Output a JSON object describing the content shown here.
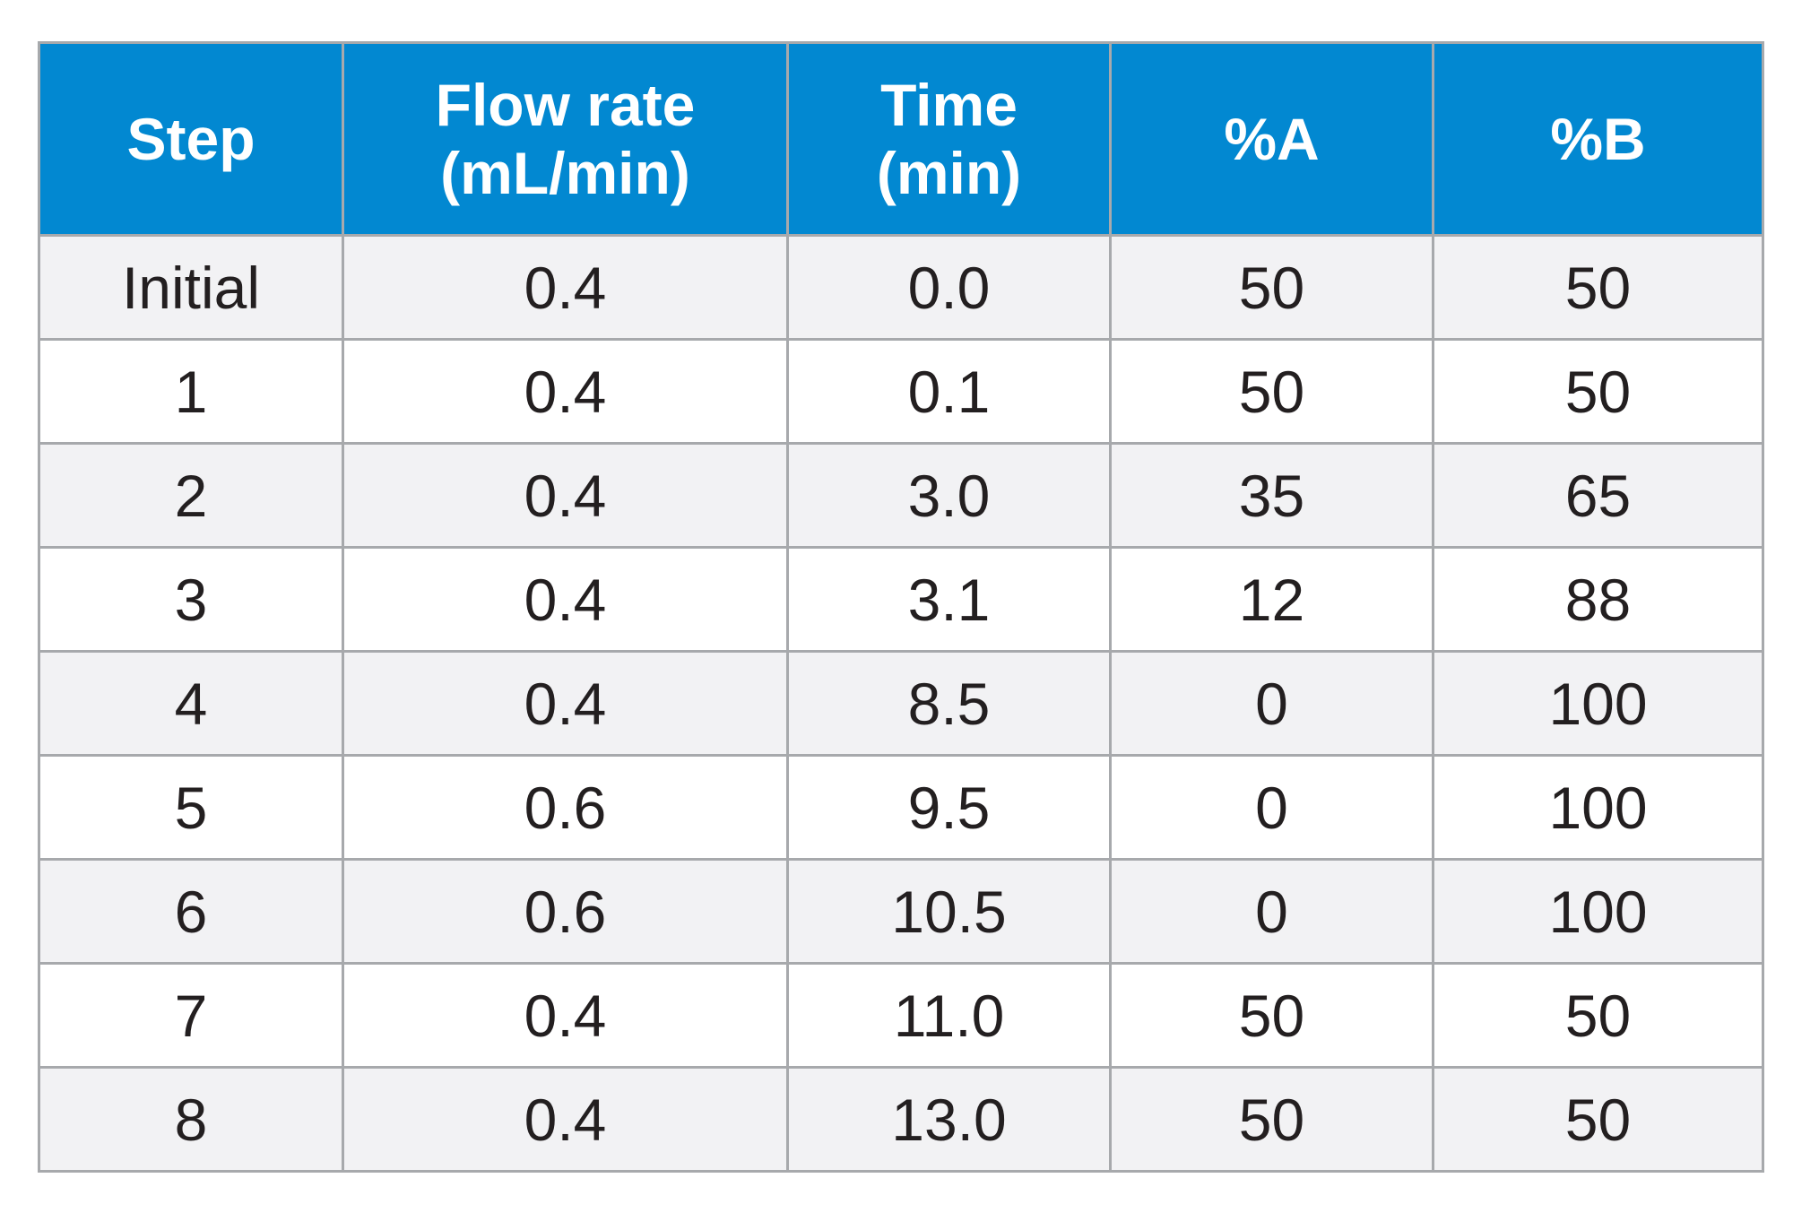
{
  "table": {
    "headers": [
      {
        "line1": "Step",
        "line2": ""
      },
      {
        "line1": "Flow rate",
        "line2": "(mL/min)"
      },
      {
        "line1": "Time",
        "line2": "(min)"
      },
      {
        "line1": "%A",
        "line2": ""
      },
      {
        "line1": "%B",
        "line2": ""
      }
    ],
    "rows": [
      [
        "Initial",
        "0.4",
        "0.0",
        "50",
        "50"
      ],
      [
        "1",
        "0.4",
        "0.1",
        "50",
        "50"
      ],
      [
        "2",
        "0.4",
        "3.0",
        "35",
        "65"
      ],
      [
        "3",
        "0.4",
        "3.1",
        "12",
        "88"
      ],
      [
        "4",
        "0.4",
        "8.5",
        "0",
        "100"
      ],
      [
        "5",
        "0.6",
        "9.5",
        "0",
        "100"
      ],
      [
        "6",
        "0.6",
        "10.5",
        "0",
        "100"
      ],
      [
        "7",
        "0.4",
        "11.0",
        "50",
        "50"
      ],
      [
        "8",
        "0.4",
        "13.0",
        "50",
        "50"
      ]
    ],
    "colors": {
      "header_bg": "#0288d1",
      "header_text": "#ffffff",
      "stripe_bg": "#f2f2f4",
      "row_bg": "#ffffff",
      "border": "#a7a9ac",
      "cell_text": "#231f20"
    }
  }
}
